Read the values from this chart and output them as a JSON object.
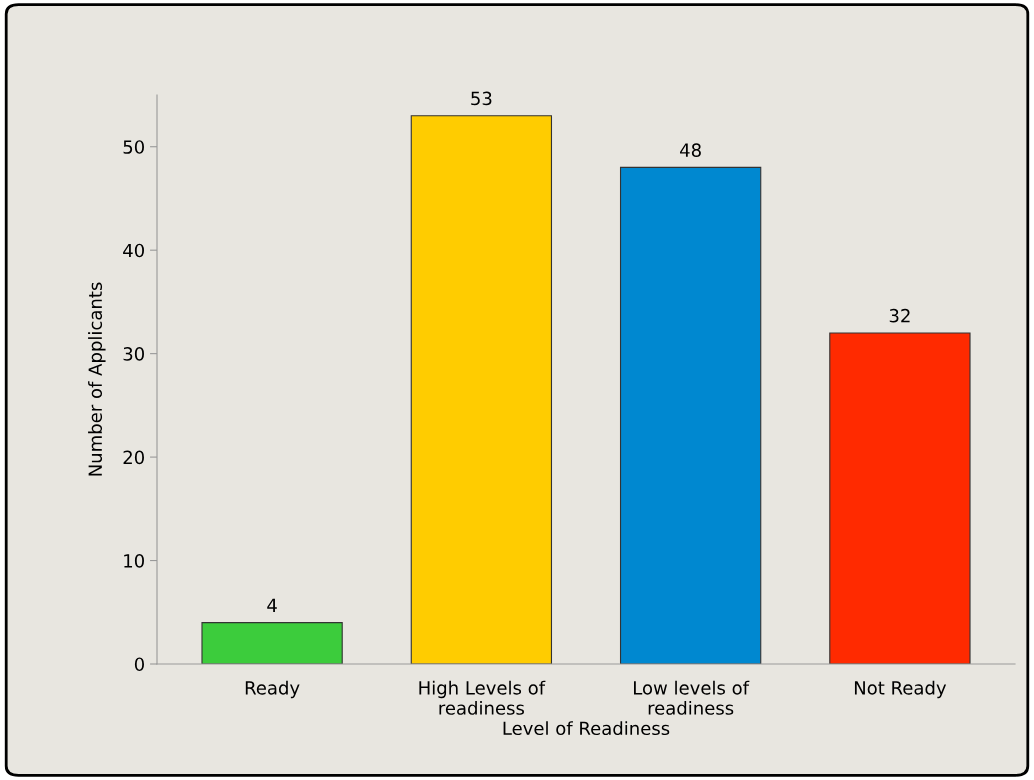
{
  "chart_data": {
    "type": "bar",
    "xlabel": "Level of Readiness",
    "ylabel": "Number of Applicants",
    "categories": [
      "Ready",
      "High Levels of\nreadiness",
      "Low levels of\nreadiness",
      "Not Ready"
    ],
    "values": [
      4,
      53,
      48,
      32
    ],
    "colors": [
      "#3ccc3c",
      "#ffcc00",
      "#0088d0",
      "#ff2a00"
    ],
    "ylim": [
      0,
      55
    ],
    "yticks": [
      0,
      10,
      20,
      30,
      40,
      50
    ],
    "data_labels": true,
    "grid": false,
    "legend": false
  }
}
